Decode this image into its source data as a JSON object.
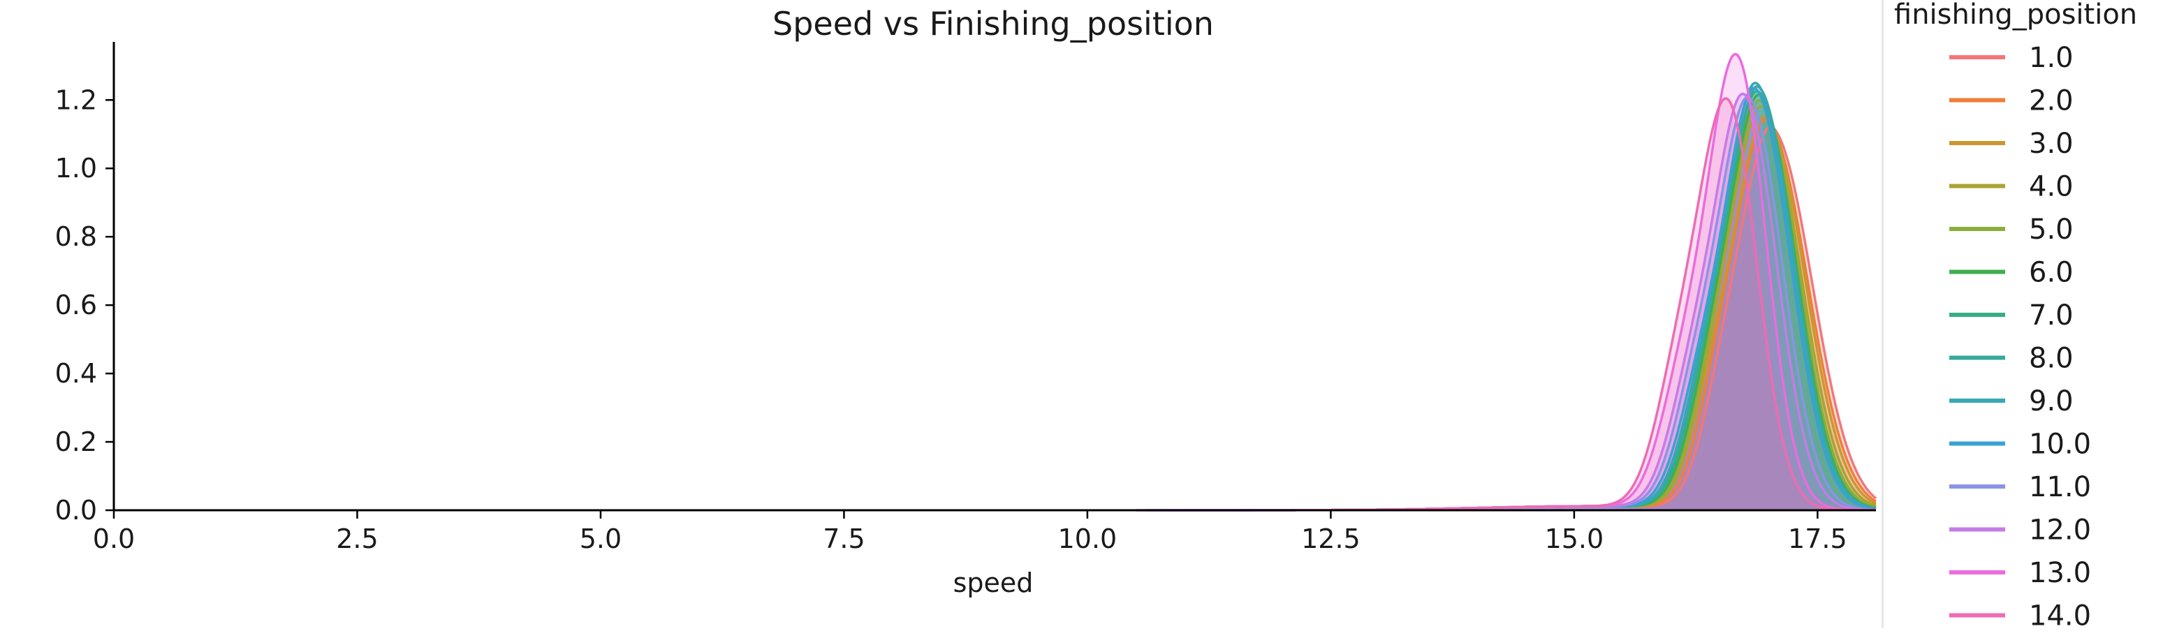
{
  "chart_data": {
    "type": "area",
    "subtype": "kde-density",
    "title": "Speed vs Finishing_position",
    "xlabel": "speed",
    "ylabel": "",
    "xlim": [
      0.0,
      18.1
    ],
    "ylim": [
      0.0,
      1.37
    ],
    "x_ticks": [
      "0.0",
      "2.5",
      "5.0",
      "7.5",
      "10.0",
      "12.5",
      "15.0",
      "17.5"
    ],
    "y_ticks": [
      "0.0",
      "0.2",
      "0.4",
      "0.6",
      "0.8",
      "1.0",
      "1.2"
    ],
    "grid": false,
    "legend": {
      "title": "finishing_position",
      "placement": "right, outside plot"
    },
    "series": [
      {
        "name": "1.0",
        "color": "#f2777a",
        "min": 15.65,
        "shoulder": 16.55,
        "peak_x": 17.05,
        "peak_y": 1.08,
        "sigma_r": 0.4
      },
      {
        "name": "2.0",
        "color": "#ef7f37",
        "min": 15.6,
        "shoulder": 16.5,
        "peak_x": 17.0,
        "peak_y": 1.1,
        "sigma_r": 0.4
      },
      {
        "name": "3.0",
        "color": "#c9972f",
        "min": 15.55,
        "shoulder": 16.45,
        "peak_x": 16.98,
        "peak_y": 1.12,
        "sigma_r": 0.39
      },
      {
        "name": "4.0",
        "color": "#a8a432",
        "min": 15.5,
        "shoulder": 16.45,
        "peak_x": 16.95,
        "peak_y": 1.14,
        "sigma_r": 0.38
      },
      {
        "name": "5.0",
        "color": "#8aae3a",
        "min": 15.4,
        "shoulder": 16.42,
        "peak_x": 16.93,
        "peak_y": 1.16,
        "sigma_r": 0.37
      },
      {
        "name": "6.0",
        "color": "#3fae4f",
        "min": 14.8,
        "shoulder": 16.4,
        "peak_x": 16.92,
        "peak_y": 1.18,
        "sigma_r": 0.36
      },
      {
        "name": "7.0",
        "color": "#36ad86",
        "min": 13.8,
        "shoulder": 16.38,
        "peak_x": 16.9,
        "peak_y": 1.19,
        "sigma_r": 0.36
      },
      {
        "name": "8.0",
        "color": "#35aa9c",
        "min": 12.5,
        "shoulder": 16.36,
        "peak_x": 16.9,
        "peak_y": 1.21,
        "sigma_r": 0.36
      },
      {
        "name": "9.0",
        "color": "#38a8b2",
        "min": 11.5,
        "shoulder": 16.34,
        "peak_x": 16.88,
        "peak_y": 1.22,
        "sigma_r": 0.36
      },
      {
        "name": "10.0",
        "color": "#3aa1d4",
        "min": 11.0,
        "shoulder": 16.3,
        "peak_x": 16.86,
        "peak_y": 1.21,
        "sigma_r": 0.36
      },
      {
        "name": "11.0",
        "color": "#8a93e6",
        "min": 10.6,
        "shoulder": 16.25,
        "peak_x": 16.8,
        "peak_y": 1.18,
        "sigma_r": 0.34
      },
      {
        "name": "12.0",
        "color": "#c57be8",
        "min": 10.5,
        "shoulder": 16.2,
        "peak_x": 16.75,
        "peak_y": 1.19,
        "sigma_r": 0.33
      },
      {
        "name": "13.0",
        "color": "#ec6be0",
        "min": 10.8,
        "shoulder": 16.1,
        "peak_x": 16.67,
        "peak_y": 1.31,
        "sigma_r": 0.3
      },
      {
        "name": "14.0",
        "color": "#ee6bb4",
        "min": 12.5,
        "shoulder": 16.05,
        "peak_x": 16.58,
        "peak_y": 1.17,
        "sigma_r": 0.3
      }
    ]
  }
}
